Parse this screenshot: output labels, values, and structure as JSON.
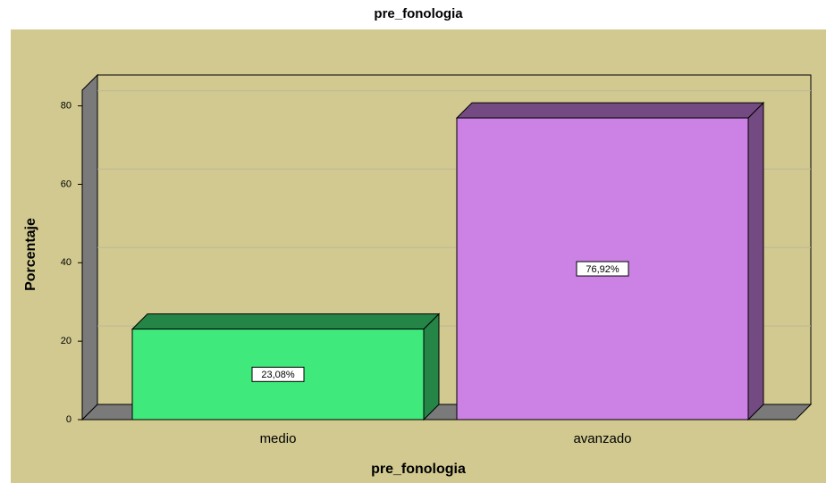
{
  "chart_data": {
    "type": "bar3d",
    "title": "pre_fonologia",
    "x_label": "pre_fonologia",
    "y_label": "Porcentaje",
    "categories": [
      "medio",
      "avanzado"
    ],
    "values": [
      23.08,
      76.92
    ],
    "value_labels": [
      "23,08%",
      "76,92%"
    ],
    "colors": [
      "#40e97c",
      "#cb82e4"
    ],
    "ylim": [
      0,
      84
    ],
    "yticks": [
      0,
      20,
      40,
      60,
      80
    ],
    "grid": true
  }
}
